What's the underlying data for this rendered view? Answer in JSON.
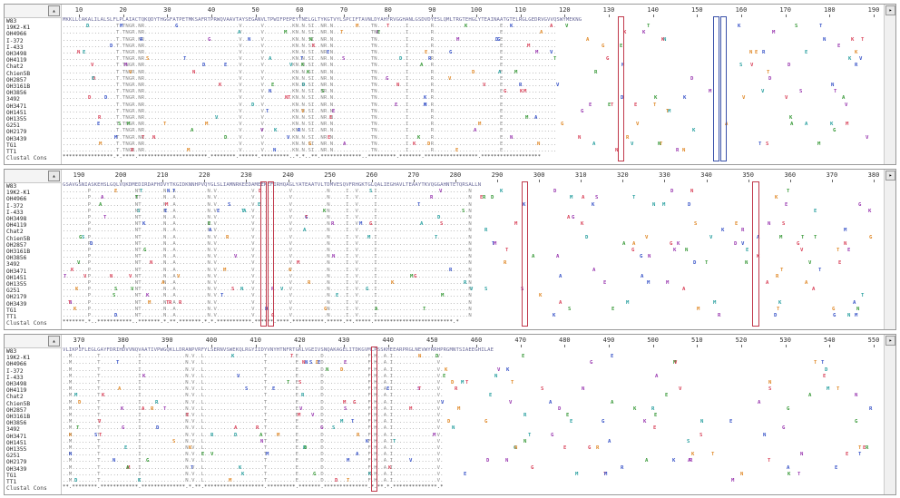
{
  "sequence_names": [
    "W83",
    "19K2-K1",
    "OH4966",
    "I-372",
    "I-433",
    "OH3498",
    "OH4119",
    "Chat2",
    "Chien5B",
    "OH2857",
    "OH3161B",
    "OH3856",
    "3492",
    "OH3471",
    "OH1451",
    "OH1355",
    "G251",
    "OH2179",
    "OH3439",
    "TG1",
    "TT1"
  ],
  "consensus_label": "Clustal Cons",
  "panels": [
    {
      "ticks": [
        "10",
        "20",
        "30",
        "40",
        "50",
        "60",
        "70",
        "80",
        "90",
        "100",
        "110",
        "120",
        "130",
        "140",
        "150",
        "160",
        "170",
        "180",
        "190"
      ],
      "ref_seq": "MKKLLCAKALILALSLFLPLAIACTQKQDYTHGGFATPETMKSAFRTPRWQVAAVTAYSEGANVLTPWIFPEPEYTNELGLTYKGTVYLSPCIFTAVNLDYAHYRVGGHANLGSDVDYESLQMLTRGTEHGLYTEAINAATGTELRGLGEDRVGVVQSWYMEKNG",
      "var_seq": ".................T.TNGR.NR..............................V......V.........KN.N.SI..NR.N............TN.........I.......R.....................E.................",
      "cons_seq": "****************.*.****.**********************.********.******.*********..*.*..**.*************..*********.*******.*****************.*******************",
      "ref_label": "panel-1"
    },
    {
      "ticks": [
        "190",
        "200",
        "210",
        "220",
        "230",
        "240",
        "250",
        "260",
        "270",
        "280",
        "290",
        "300",
        "310",
        "320",
        "330",
        "340",
        "350",
        "360",
        "370",
        "380"
      ],
      "ref_seq": "GSAVGSNIASKEHSLGQLVQKDMEDIRDAFHDVYTKGIDKNNHPVQYGLSLIAMNRKEEDAMEEKEFIRHQAGLYATEAATVLTDMVESQVFRHGKTGLQALIEGHAVLTEAAYTKVQGGAHNTETQRSALLN",
      "var_seq": "........P..............NT.......N..A..........N.V...........V...........V...........N.....I..V.....I.............................N",
      "cons_seq": "*******.*..***********..*******.*.**.*******.*.*.***********.******.****.**********.*****.**.*****.*************************.*",
      "ref_label": "panel-2"
    },
    {
      "ticks": [
        "370",
        "380",
        "390",
        "400",
        "410",
        "420",
        "430",
        "440",
        "450",
        "460",
        "470",
        "480",
        "490",
        "500",
        "510",
        "520",
        "530",
        "540",
        "550"
      ],
      "ref_seq": "VLIKPIFLEGLGAYFDRIHDVVNQVAATIVPWGQKLLDRANPVRFYLSERNVSWEKQLRGYIIDYVNYHTNFRTGKLVGEIVSNQAKAGELITDKGVMLPSSKHEEARPRGLNEVWYRRHPRGMNTSIAEEGHILAE",
      "var_seq": "..M........T............I..............N.V..L...................T.........E.......D..............F.H..A.I..............V.",
      "cons_seq": "**.********.************.**************.*.**.*******************.*********.*******.**************.*.**.*.**************.*",
      "ref_label": "panel-3"
    }
  ],
  "colors": {
    "var_red": "#d9435a",
    "var_green": "#3a9a3a",
    "var_blue": "#3a55c8",
    "var_orange": "#e08a2a",
    "var_purple": "#9a3ab0",
    "var_teal": "#2aa0a0",
    "box_red": "#c0394b",
    "box_blue": "#3850a8"
  },
  "icons": {
    "panel_corner": "scroll-button-icon",
    "scroll_arrow": "scroll-arrow-icon"
  }
}
